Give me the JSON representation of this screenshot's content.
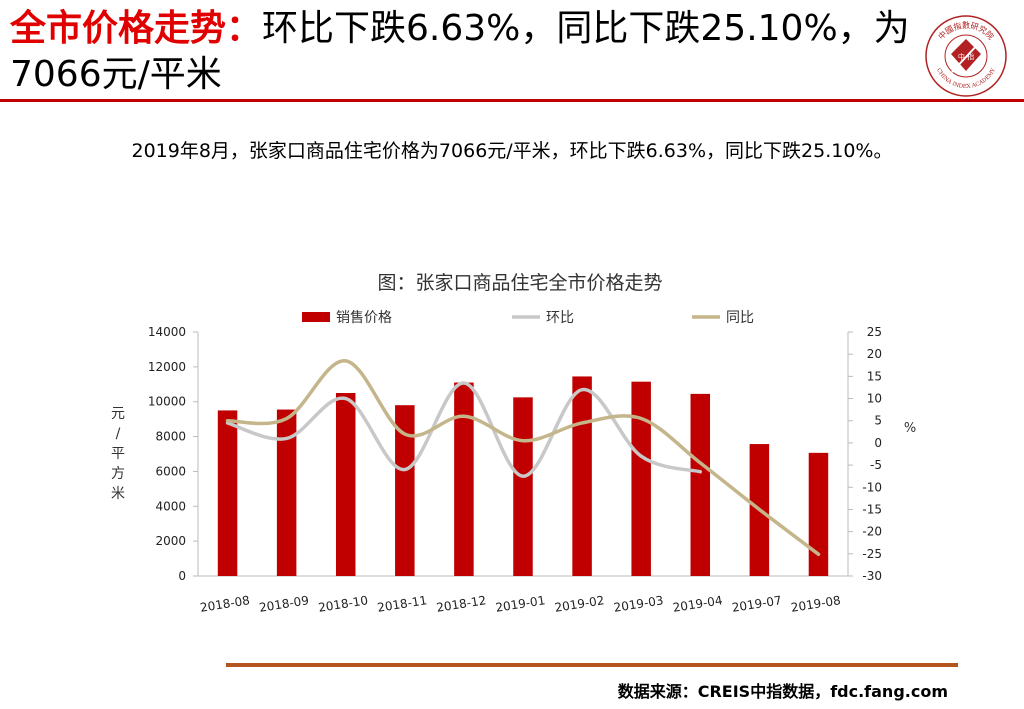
{
  "header": {
    "title_highlight": "全市价格走势：",
    "title_rest": "环比下跌6.63%，同比下跌25.10%，为7066元/平米",
    "logo_text_top": "中國指數研究院",
    "logo_text_bottom": "CHINA INDEX ACADEMY",
    "logo_center": "中 指"
  },
  "summary": "2019年8月，张家口商品住宅价格为7066元/平米，环比下跌6.63%，同比下跌25.10%。",
  "chart_title": "图：张家口商品住宅全市价格走势",
  "chart_data": {
    "type": "bar",
    "categories": [
      "2018-08",
      "2018-09",
      "2018-10",
      "2018-11",
      "2018-12",
      "2019-01",
      "2019-02",
      "2019-03",
      "2019-04",
      "2019-07",
      "2019-08"
    ],
    "series": [
      {
        "name": "销售价格",
        "type": "bar",
        "axis": "left",
        "color": "#c00000",
        "values": [
          9500,
          9550,
          10500,
          9800,
          11100,
          10250,
          11450,
          11150,
          10450,
          7570,
          7066
        ]
      },
      {
        "name": "环比",
        "type": "line",
        "axis": "right",
        "color": "#c8c8c8",
        "values": [
          4.5,
          1.0,
          10.0,
          -6.0,
          13.5,
          -7.5,
          12.0,
          -3.0,
          -6.5,
          null,
          null
        ]
      },
      {
        "name": "同比",
        "type": "line",
        "axis": "right",
        "color": "#c4b58a",
        "values": [
          5.0,
          5.5,
          18.5,
          2.0,
          6.0,
          0.5,
          4.5,
          5.5,
          -4.5,
          -15.0,
          -25.1
        ]
      }
    ],
    "y_left": {
      "label": "元/平方米",
      "min": 0,
      "max": 14000,
      "step": 2000,
      "ticks": [
        "0",
        "2000",
        "4000",
        "6000",
        "8000",
        "10000",
        "12000",
        "14000"
      ]
    },
    "y_right": {
      "label": "%",
      "min": -30,
      "max": 25,
      "step": 5,
      "ticks": [
        "-30",
        "-25",
        "-20",
        "-15",
        "-10",
        "-5",
        "0",
        "5",
        "10",
        "15",
        "20",
        "25"
      ]
    },
    "legend_position": "top",
    "grid": false
  },
  "source": "数据来源：CREIS中指数据，fdc.fang.com"
}
